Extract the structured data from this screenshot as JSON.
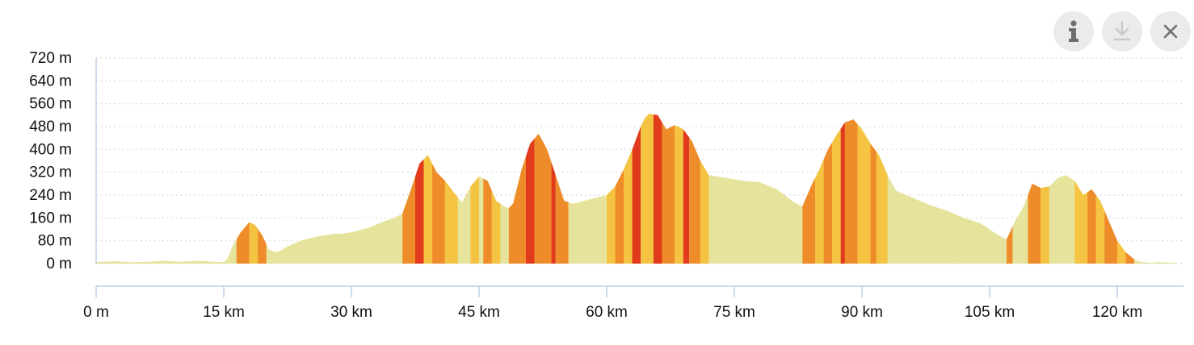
{
  "toolbar": {
    "buttons": [
      {
        "name": "info-button",
        "icon": "info-icon"
      },
      {
        "name": "download-button",
        "icon": "download-icon"
      },
      {
        "name": "close-button",
        "icon": "close-icon"
      }
    ]
  },
  "chart_data": {
    "type": "area",
    "title": "",
    "xlabel": "",
    "ylabel": "",
    "xlim": [
      0,
      127
    ],
    "ylim": [
      0,
      720
    ],
    "grid": true,
    "y_ticks": [
      {
        "value": 0,
        "label": "0 m"
      },
      {
        "value": 80,
        "label": "80 m"
      },
      {
        "value": 160,
        "label": "160 m"
      },
      {
        "value": 240,
        "label": "240 m"
      },
      {
        "value": 320,
        "label": "320 m"
      },
      {
        "value": 400,
        "label": "400 m"
      },
      {
        "value": 480,
        "label": "480 m"
      },
      {
        "value": 560,
        "label": "560 m"
      },
      {
        "value": 640,
        "label": "640 m"
      },
      {
        "value": 720,
        "label": "720 m"
      }
    ],
    "x_ticks": [
      {
        "value": 0,
        "label": "0 m"
      },
      {
        "value": 15,
        "label": "15 km"
      },
      {
        "value": 30,
        "label": "30 km"
      },
      {
        "value": 45,
        "label": "45 km"
      },
      {
        "value": 60,
        "label": "60 km"
      },
      {
        "value": 75,
        "label": "75 km"
      },
      {
        "value": 90,
        "label": "90 km"
      },
      {
        "value": 105,
        "label": "105 km"
      },
      {
        "value": 120,
        "label": "120 km"
      }
    ],
    "colors": {
      "flat": "#e6e49c",
      "moderate": "#f5c342",
      "steep": "#ef8c2a",
      "very_steep": "#e23a1c",
      "axis": "#bcd0e6",
      "grid": "#cfcfcf"
    },
    "series": [
      {
        "x_km": [
          0,
          2,
          4,
          6,
          8,
          9,
          10,
          12,
          14,
          15,
          15.5,
          16,
          17,
          18,
          18.7,
          19.5,
          20.3,
          21,
          21.6,
          22.5,
          24,
          26,
          28,
          29,
          30,
          32,
          34,
          35,
          36,
          37,
          38,
          39,
          40,
          41,
          42,
          43,
          44,
          45,
          46,
          47,
          48,
          48.5,
          49,
          50,
          51,
          52,
          53,
          54,
          55,
          56,
          58,
          60,
          61,
          62,
          63,
          64,
          64.5,
          65,
          66,
          67,
          68,
          69,
          70,
          71,
          72,
          74,
          76,
          78,
          80,
          82,
          83,
          84,
          85,
          86,
          87,
          88,
          89,
          90,
          91,
          92,
          93,
          94,
          96,
          98,
          100,
          102,
          104,
          105,
          106,
          107,
          108,
          109,
          110,
          111,
          112,
          113,
          114,
          115,
          116,
          117,
          118,
          119,
          120,
          121,
          122,
          122.5,
          123,
          124,
          125,
          126,
          127
        ],
        "elevation_m": [
          5,
          8,
          5,
          6,
          10,
          8,
          6,
          10,
          6,
          5,
          20,
          60,
          110,
          145,
          135,
          100,
          50,
          40,
          45,
          60,
          80,
          95,
          105,
          105,
          110,
          125,
          150,
          160,
          175,
          260,
          350,
          380,
          320,
          290,
          250,
          215,
          270,
          305,
          290,
          220,
          200,
          195,
          210,
          330,
          420,
          455,
          400,
          310,
          220,
          210,
          225,
          240,
          270,
          330,
          400,
          480,
          510,
          525,
          520,
          470,
          485,
          470,
          430,
          360,
          310,
          300,
          290,
          285,
          260,
          215,
          200,
          270,
          330,
          400,
          450,
          495,
          505,
          470,
          420,
          380,
          310,
          255,
          230,
          205,
          185,
          160,
          140,
          120,
          100,
          85,
          150,
          200,
          280,
          265,
          270,
          300,
          310,
          290,
          240,
          260,
          220,
          150,
          80,
          40,
          15,
          8,
          5,
          3,
          5,
          3,
          4
        ]
      }
    ],
    "gradient_bands": [
      {
        "from_km": 16.5,
        "to_km": 18,
        "class": "steep"
      },
      {
        "from_km": 18,
        "to_km": 19,
        "class": "moderate"
      },
      {
        "from_km": 19,
        "to_km": 20,
        "class": "steep"
      },
      {
        "from_km": 36,
        "to_km": 37.5,
        "class": "steep"
      },
      {
        "from_km": 37.5,
        "to_km": 38.5,
        "class": "very_steep"
      },
      {
        "from_km": 38.5,
        "to_km": 39.5,
        "class": "moderate"
      },
      {
        "from_km": 39.5,
        "to_km": 41,
        "class": "steep"
      },
      {
        "from_km": 41,
        "to_km": 42.5,
        "class": "moderate"
      },
      {
        "from_km": 44,
        "to_km": 45,
        "class": "moderate"
      },
      {
        "from_km": 45.5,
        "to_km": 46.5,
        "class": "steep"
      },
      {
        "from_km": 46.5,
        "to_km": 47.5,
        "class": "moderate"
      },
      {
        "from_km": 48.5,
        "to_km": 50.5,
        "class": "steep"
      },
      {
        "from_km": 50.5,
        "to_km": 51.5,
        "class": "very_steep"
      },
      {
        "from_km": 51.5,
        "to_km": 53.5,
        "class": "steep"
      },
      {
        "from_km": 53.5,
        "to_km": 54,
        "class": "very_steep"
      },
      {
        "from_km": 54,
        "to_km": 55.5,
        "class": "steep"
      },
      {
        "from_km": 60,
        "to_km": 61,
        "class": "moderate"
      },
      {
        "from_km": 61,
        "to_km": 62,
        "class": "steep"
      },
      {
        "from_km": 62,
        "to_km": 63,
        "class": "moderate"
      },
      {
        "from_km": 63,
        "to_km": 64,
        "class": "very_steep"
      },
      {
        "from_km": 64,
        "to_km": 65.5,
        "class": "moderate"
      },
      {
        "from_km": 65.5,
        "to_km": 66.5,
        "class": "very_steep"
      },
      {
        "from_km": 66.5,
        "to_km": 68,
        "class": "steep"
      },
      {
        "from_km": 68,
        "to_km": 69,
        "class": "moderate"
      },
      {
        "from_km": 69,
        "to_km": 69.7,
        "class": "very_steep"
      },
      {
        "from_km": 69.7,
        "to_km": 71,
        "class": "steep"
      },
      {
        "from_km": 71,
        "to_km": 72,
        "class": "moderate"
      },
      {
        "from_km": 83,
        "to_km": 84.5,
        "class": "steep"
      },
      {
        "from_km": 84.5,
        "to_km": 85.5,
        "class": "moderate"
      },
      {
        "from_km": 85.5,
        "to_km": 86.5,
        "class": "steep"
      },
      {
        "from_km": 86.5,
        "to_km": 87.5,
        "class": "moderate"
      },
      {
        "from_km": 87.5,
        "to_km": 88,
        "class": "very_steep"
      },
      {
        "from_km": 88,
        "to_km": 89.5,
        "class": "steep"
      },
      {
        "from_km": 89.5,
        "to_km": 91,
        "class": "moderate"
      },
      {
        "from_km": 91,
        "to_km": 91.7,
        "class": "steep"
      },
      {
        "from_km": 91.7,
        "to_km": 93,
        "class": "moderate"
      },
      {
        "from_km": 107,
        "to_km": 107.7,
        "class": "steep"
      },
      {
        "from_km": 109.5,
        "to_km": 111,
        "class": "steep"
      },
      {
        "from_km": 111,
        "to_km": 112,
        "class": "moderate"
      },
      {
        "from_km": 115,
        "to_km": 116.5,
        "class": "moderate"
      },
      {
        "from_km": 116.5,
        "to_km": 117.5,
        "class": "steep"
      },
      {
        "from_km": 117.5,
        "to_km": 118.5,
        "class": "moderate"
      },
      {
        "from_km": 118.5,
        "to_km": 120,
        "class": "steep"
      },
      {
        "from_km": 120,
        "to_km": 121,
        "class": "moderate"
      },
      {
        "from_km": 121,
        "to_km": 122,
        "class": "steep"
      }
    ]
  }
}
